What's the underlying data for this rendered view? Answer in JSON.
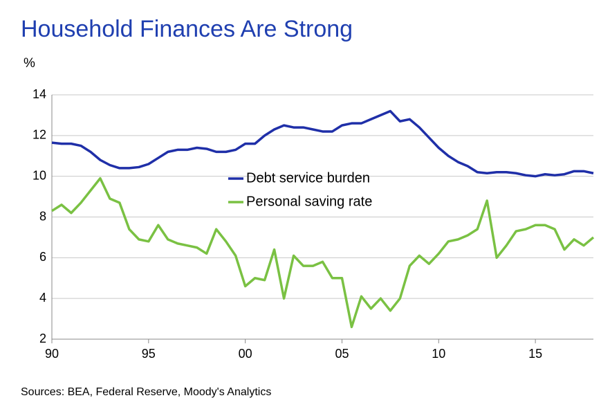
{
  "chart_data": {
    "type": "line",
    "title": "Household Finances Are Strong",
    "y_label": "%",
    "source": "Sources: BEA, Federal Reserve, Moody's Analytics",
    "x": [
      1990,
      1990.5,
      1991,
      1991.5,
      1992,
      1992.5,
      1993,
      1993.5,
      1994,
      1994.5,
      1995,
      1995.5,
      1996,
      1996.5,
      1997,
      1997.5,
      1998,
      1998.5,
      1999,
      1999.5,
      2000,
      2000.5,
      2001,
      2001.5,
      2002,
      2002.5,
      2003,
      2003.5,
      2004,
      2004.5,
      2005,
      2005.5,
      2006,
      2006.5,
      2007,
      2007.5,
      2008,
      2008.5,
      2009,
      2009.5,
      2010,
      2010.5,
      2011,
      2011.5,
      2012,
      2012.5,
      2013,
      2013.5,
      2014,
      2014.5,
      2015,
      2015.5,
      2016,
      2016.5,
      2017,
      2017.5,
      2018
    ],
    "series": [
      {
        "name": "Debt service burden",
        "color": "#1f2fa8",
        "values": [
          11.65,
          11.6,
          11.6,
          11.5,
          11.2,
          10.8,
          10.55,
          10.4,
          10.4,
          10.45,
          10.6,
          10.9,
          11.2,
          11.3,
          11.3,
          11.4,
          11.35,
          11.2,
          11.2,
          11.3,
          11.6,
          11.6,
          12.0,
          12.3,
          12.5,
          12.4,
          12.4,
          12.3,
          12.2,
          12.2,
          12.5,
          12.6,
          12.6,
          12.8,
          13.0,
          13.2,
          12.7,
          12.8,
          12.4,
          11.9,
          11.4,
          11.0,
          10.7,
          10.5,
          10.2,
          10.15,
          10.2,
          10.2,
          10.15,
          10.05,
          10.0,
          10.1,
          10.05,
          10.1,
          10.25,
          10.25,
          10.15
        ]
      },
      {
        "name": "Personal saving rate",
        "color": "#7ac143",
        "values": [
          8.3,
          8.6,
          8.2,
          8.7,
          9.3,
          9.9,
          8.9,
          8.7,
          7.4,
          6.9,
          6.8,
          7.6,
          6.9,
          6.7,
          6.6,
          6.5,
          6.2,
          7.4,
          6.8,
          6.1,
          4.6,
          5.0,
          4.9,
          6.4,
          4.0,
          6.1,
          5.6,
          5.6,
          5.8,
          5.0,
          5.0,
          2.6,
          4.1,
          3.5,
          4.0,
          3.4,
          4.0,
          5.6,
          6.1,
          5.7,
          6.2,
          6.8,
          6.9,
          7.1,
          7.4,
          8.8,
          6.0,
          6.6,
          7.3,
          7.4,
          7.6,
          7.6,
          7.4,
          6.4,
          6.9,
          6.6,
          7.0
        ]
      }
    ],
    "xlim": [
      1990,
      2018
    ],
    "xticks": [
      {
        "value": 1990,
        "label": "90"
      },
      {
        "value": 1995,
        "label": "95"
      },
      {
        "value": 2000,
        "label": "00"
      },
      {
        "value": 2005,
        "label": "05"
      },
      {
        "value": 2010,
        "label": "10"
      },
      {
        "value": 2015,
        "label": "15"
      }
    ],
    "ylim": [
      2,
      14
    ],
    "yticks": [
      2,
      4,
      6,
      8,
      10,
      12,
      14
    ],
    "grid": true,
    "legend": "center"
  }
}
